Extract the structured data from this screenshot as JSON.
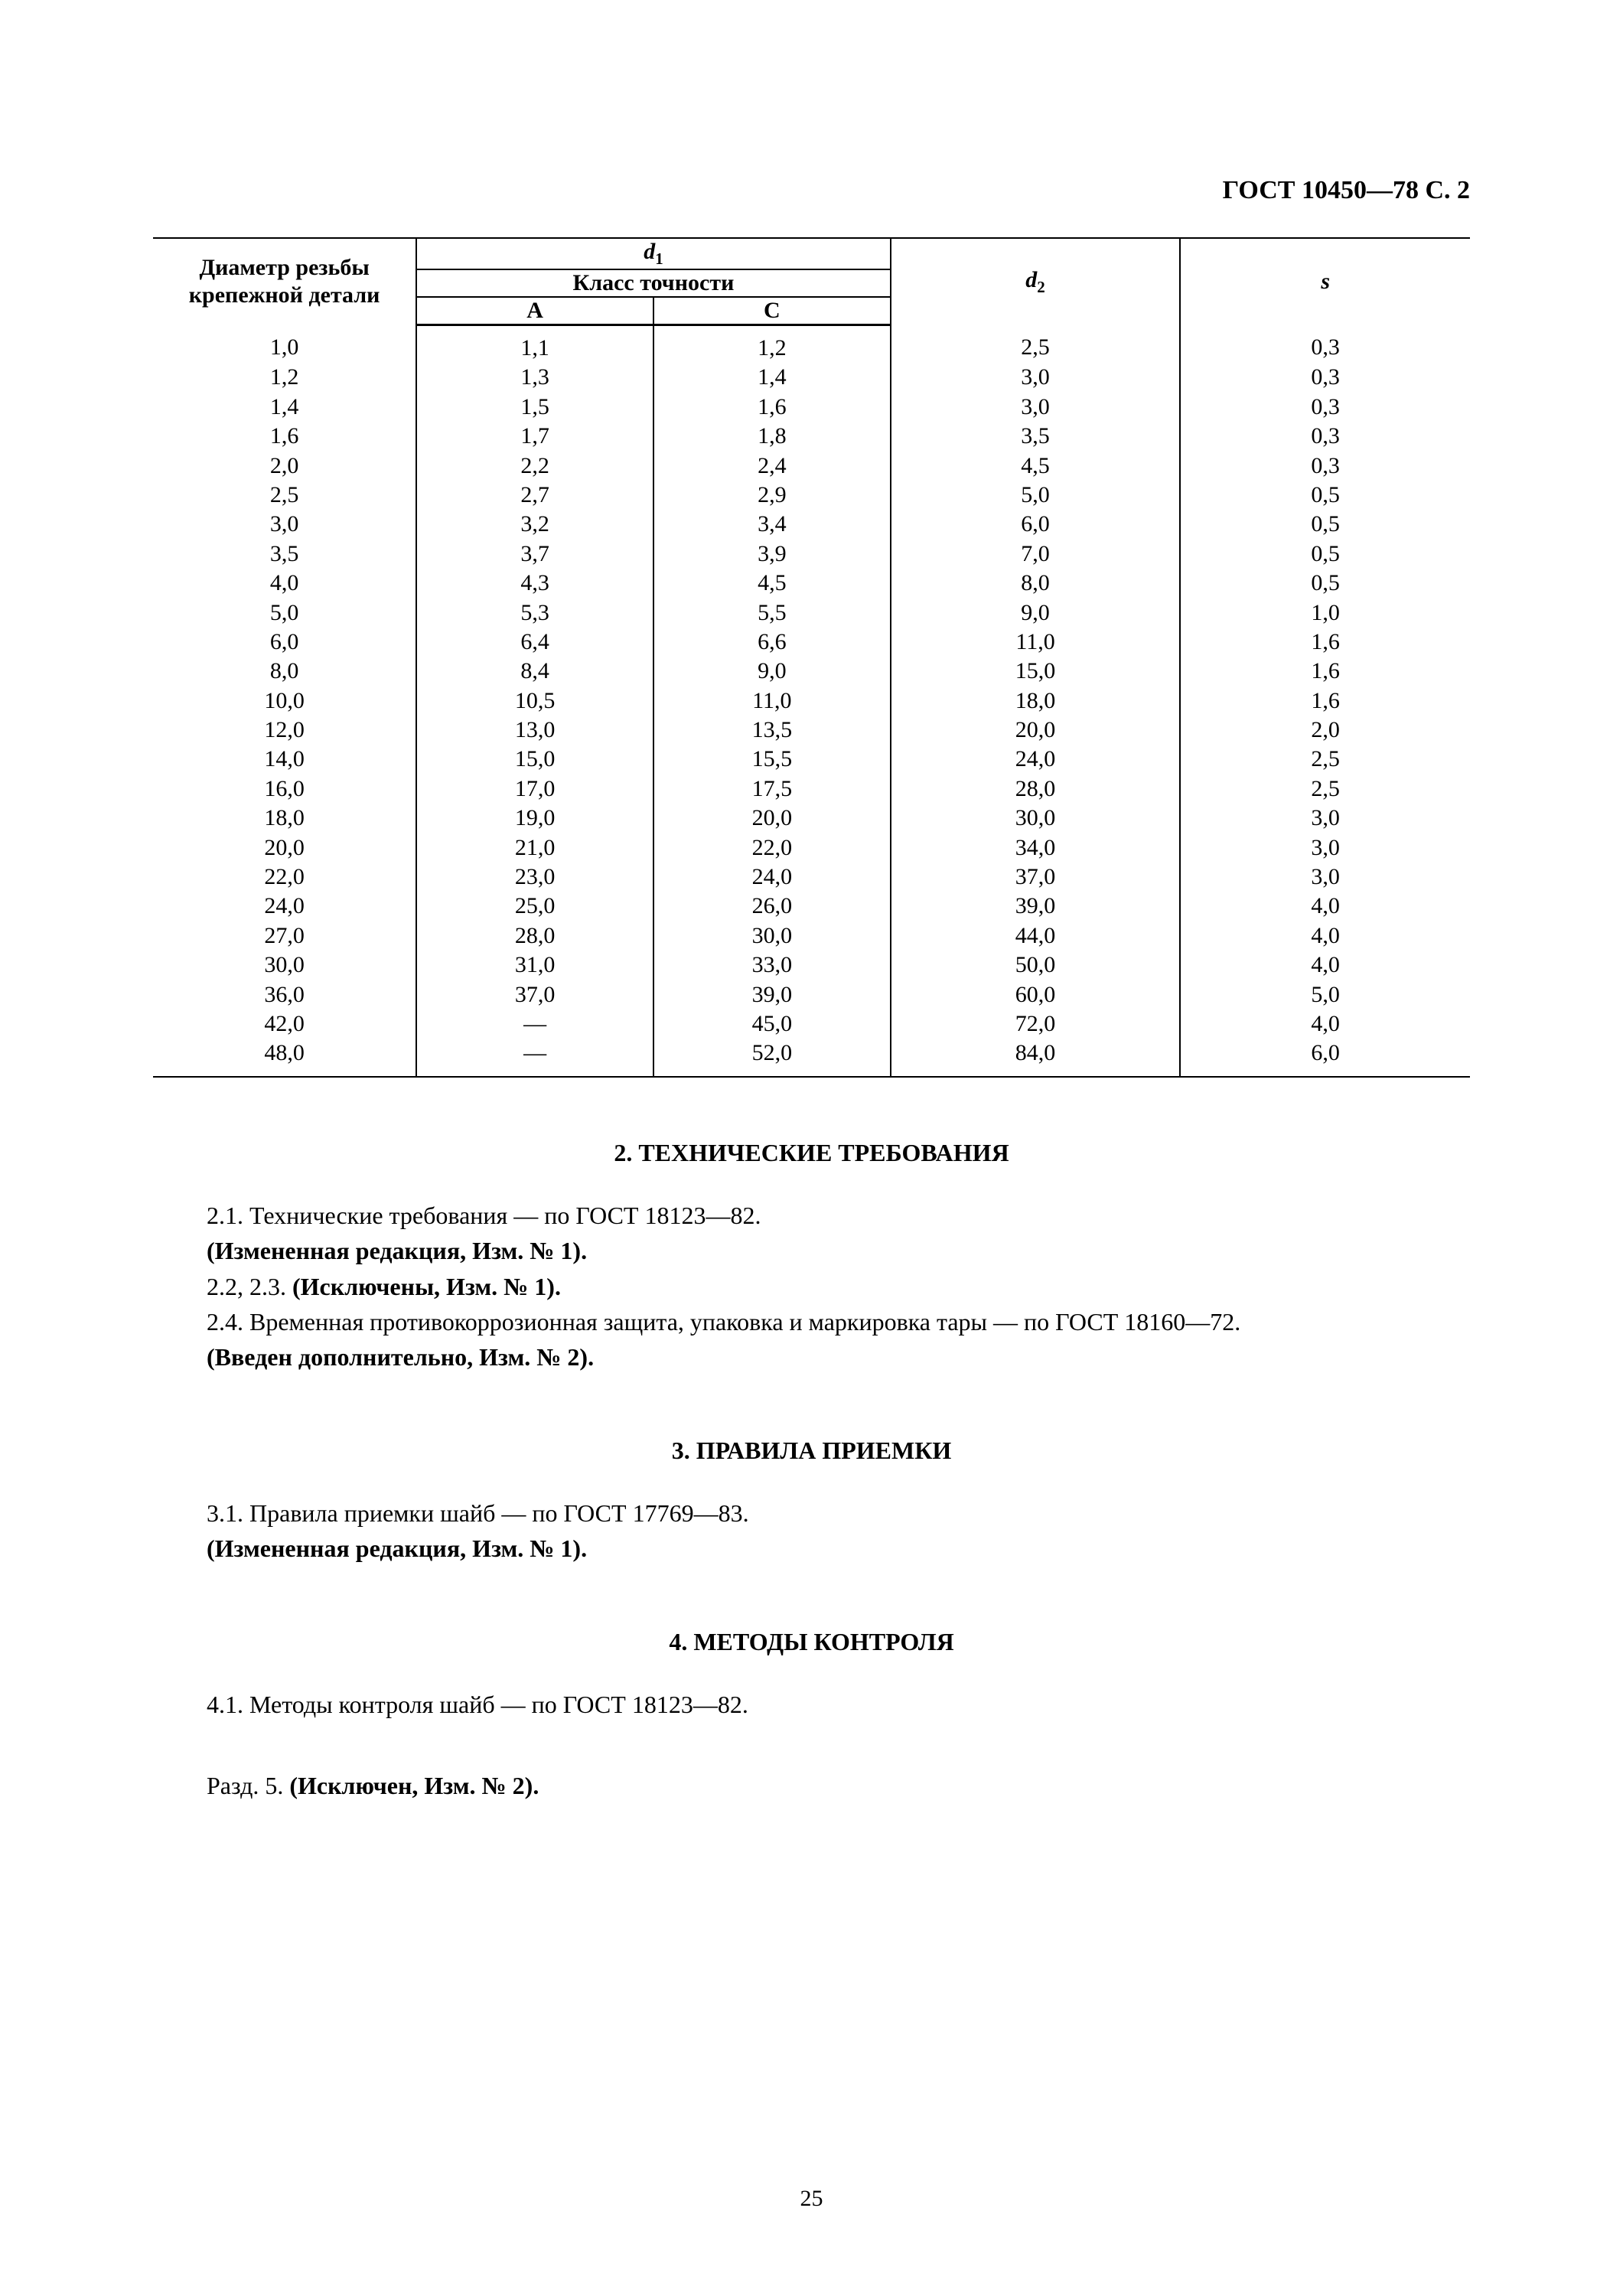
{
  "header": {
    "doc_ref": "ГОСТ 10450—78 С. 2"
  },
  "table": {
    "columns": {
      "diam_label": "Диаметр резьбы\nкрепежной детали",
      "d1_label": "d",
      "d1_sub": "1",
      "klass_label": "Класс точности",
      "class_a": "A",
      "class_c": "C",
      "d2_label": "d",
      "d2_sub": "2",
      "s_label": "s"
    },
    "col_widths_pct": [
      20,
      18,
      18,
      22,
      22
    ],
    "rows": [
      [
        "1,0",
        "1,1",
        "1,2",
        "2,5",
        "0,3"
      ],
      [
        "1,2",
        "1,3",
        "1,4",
        "3,0",
        "0,3"
      ],
      [
        "1,4",
        "1,5",
        "1,6",
        "3,0",
        "0,3"
      ],
      [
        "1,6",
        "1,7",
        "1,8",
        "3,5",
        "0,3"
      ],
      [
        "2,0",
        "2,2",
        "2,4",
        "4,5",
        "0,3"
      ],
      [
        "2,5",
        "2,7",
        "2,9",
        "5,0",
        "0,5"
      ],
      [
        "3,0",
        "3,2",
        "3,4",
        "6,0",
        "0,5"
      ],
      [
        "3,5",
        "3,7",
        "3,9",
        "7,0",
        "0,5"
      ],
      [
        "4,0",
        "4,3",
        "4,5",
        "8,0",
        "0,5"
      ],
      [
        "5,0",
        "5,3",
        "5,5",
        "9,0",
        "1,0"
      ],
      [
        "6,0",
        "6,4",
        "6,6",
        "11,0",
        "1,6"
      ],
      [
        "8,0",
        "8,4",
        "9,0",
        "15,0",
        "1,6"
      ],
      [
        "10,0",
        "10,5",
        "11,0",
        "18,0",
        "1,6"
      ],
      [
        "12,0",
        "13,0",
        "13,5",
        "20,0",
        "2,0"
      ],
      [
        "14,0",
        "15,0",
        "15,5",
        "24,0",
        "2,5"
      ],
      [
        "16,0",
        "17,0",
        "17,5",
        "28,0",
        "2,5"
      ],
      [
        "18,0",
        "19,0",
        "20,0",
        "30,0",
        "3,0"
      ],
      [
        "20,0",
        "21,0",
        "22,0",
        "34,0",
        "3,0"
      ],
      [
        "22,0",
        "23,0",
        "24,0",
        "37,0",
        "3,0"
      ],
      [
        "24,0",
        "25,0",
        "26,0",
        "39,0",
        "4,0"
      ],
      [
        "27,0",
        "28,0",
        "30,0",
        "44,0",
        "4,0"
      ],
      [
        "30,0",
        "31,0",
        "33,0",
        "50,0",
        "4,0"
      ],
      [
        "36,0",
        "37,0",
        "39,0",
        "60,0",
        "5,0"
      ],
      [
        "42,0",
        "—",
        "45,0",
        "72,0",
        "4,0"
      ],
      [
        "48,0",
        "—",
        "52,0",
        "84,0",
        "6,0"
      ]
    ]
  },
  "sections": {
    "sec2_title": "2. ТЕХНИЧЕСКИЕ ТРЕБОВАНИЯ",
    "sec2_p1": "2.1. Технические требования — по ГОСТ 18123—82.",
    "sec2_p2": "(Измененная редакция, Изм. № 1).",
    "sec2_p3": "2.2, 2.3. (Исключены, Изм. № 1).",
    "sec2_p4": "2.4. Временная противокоррозионная защита, упаковка и маркировка тары — по ГОСТ 18160—72.",
    "sec2_p5": "(Введен дополнительно, Изм. № 2).",
    "sec3_title": "3. ПРАВИЛА ПРИЕМКИ",
    "sec3_p1": "3.1. Правила приемки шайб — по ГОСТ 17769—83.",
    "sec3_p2": "(Измененная редакция, Изм. № 1).",
    "sec4_title": "4. МЕТОДЫ КОНТРОЛЯ",
    "sec4_p1": "4.1. Методы контроля шайб — по ГОСТ 18123—82.",
    "sec5_p1_a": "Разд. 5. ",
    "sec5_p1_b": "(Исключен, Изм. № 2)."
  },
  "page_number": "25"
}
